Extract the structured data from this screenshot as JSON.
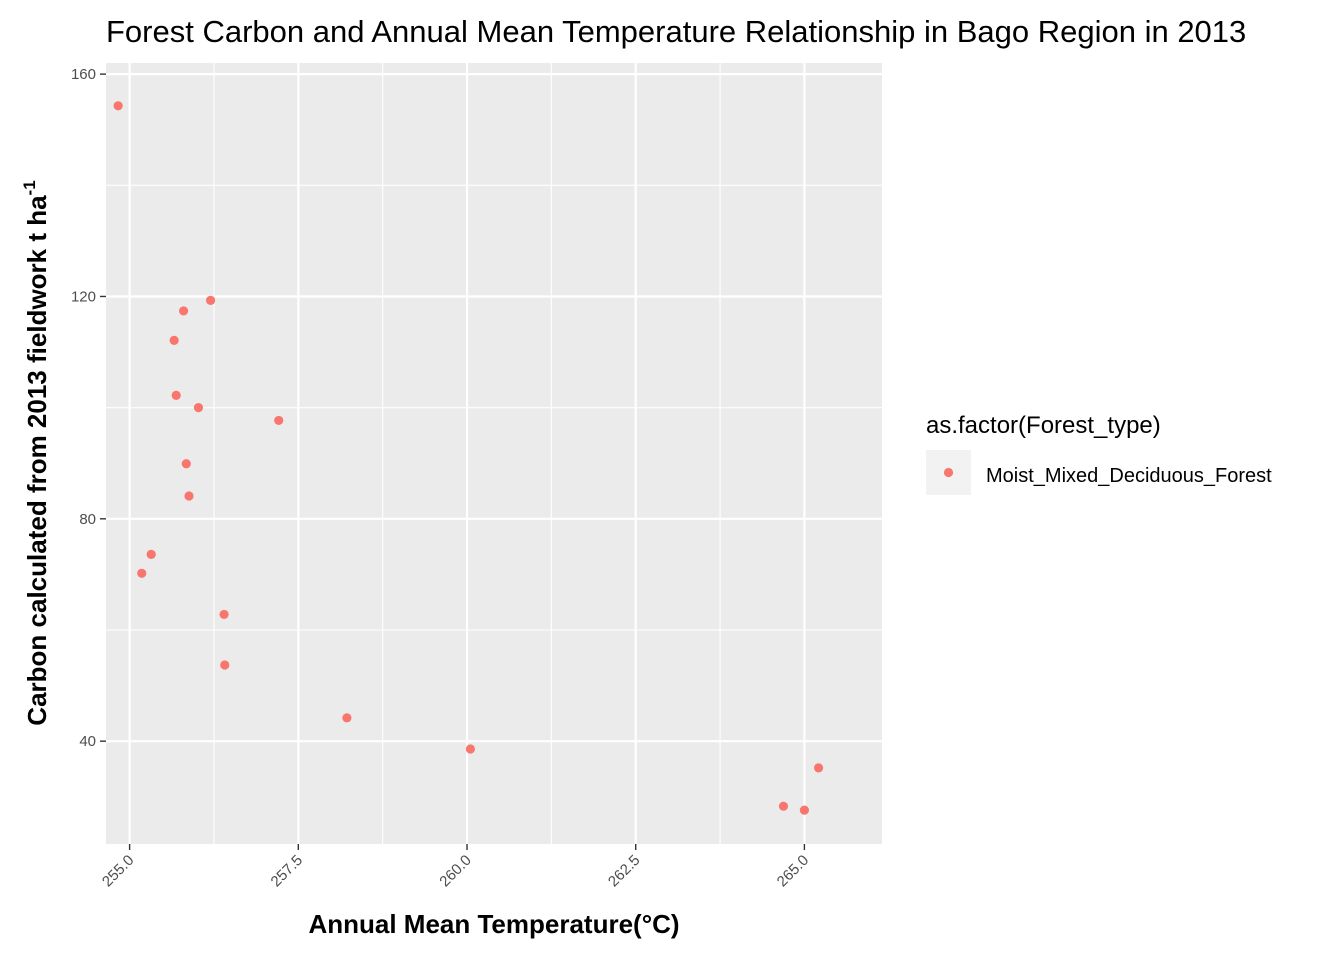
{
  "chart_data": {
    "type": "scatter",
    "title": "Forest Carbon and Annual Mean Temperature Relationship in Bago Region in 2013",
    "xlabel": "Annual Mean Temperature(°C)",
    "ylabel": {
      "text": "Carbon calculated from 2013 fieldwork t ha",
      "superscript": "-1"
    },
    "xlim": [
      254.65,
      266.15
    ],
    "ylim": [
      21.5,
      162
    ],
    "x_ticks": [
      255.0,
      257.5,
      260.0,
      262.5,
      265.0
    ],
    "x_tick_labels": [
      "255.0",
      "257.5",
      "260.0",
      "262.5",
      "265.0"
    ],
    "y_ticks": [
      40,
      80,
      120,
      160
    ],
    "y_tick_labels": [
      "40",
      "80",
      "120",
      "160"
    ],
    "grid": true,
    "legend": {
      "title": "as.factor(Forest_type)",
      "position": "right",
      "entries": [
        {
          "label": "Moist_Mixed_Deciduous_Forest",
          "color": "#F8766D"
        }
      ]
    },
    "colors": {
      "panel_background": "#EBEBEB",
      "grid_line": "#FFFFFF",
      "point": "#F8766D"
    },
    "series": [
      {
        "points": [
          {
            "x": 254.83,
            "y": 154.3
          },
          {
            "x": 255.18,
            "y": 70.2
          },
          {
            "x": 255.32,
            "y": 73.6
          },
          {
            "x": 255.66,
            "y": 112.1
          },
          {
            "x": 255.69,
            "y": 102.2
          },
          {
            "x": 255.8,
            "y": 117.4
          },
          {
            "x": 255.84,
            "y": 89.9
          },
          {
            "x": 255.88,
            "y": 84.1
          },
          {
            "x": 256.02,
            "y": 100.0
          },
          {
            "x": 256.2,
            "y": 119.3
          },
          {
            "x": 256.4,
            "y": 62.8
          },
          {
            "x": 256.41,
            "y": 53.7
          },
          {
            "x": 257.21,
            "y": 97.7
          },
          {
            "x": 258.22,
            "y": 44.2
          },
          {
            "x": 260.05,
            "y": 38.6
          },
          {
            "x": 264.69,
            "y": 28.3
          },
          {
            "x": 265.0,
            "y": 27.6
          },
          {
            "x": 265.21,
            "y": 35.2
          }
        ]
      }
    ]
  }
}
